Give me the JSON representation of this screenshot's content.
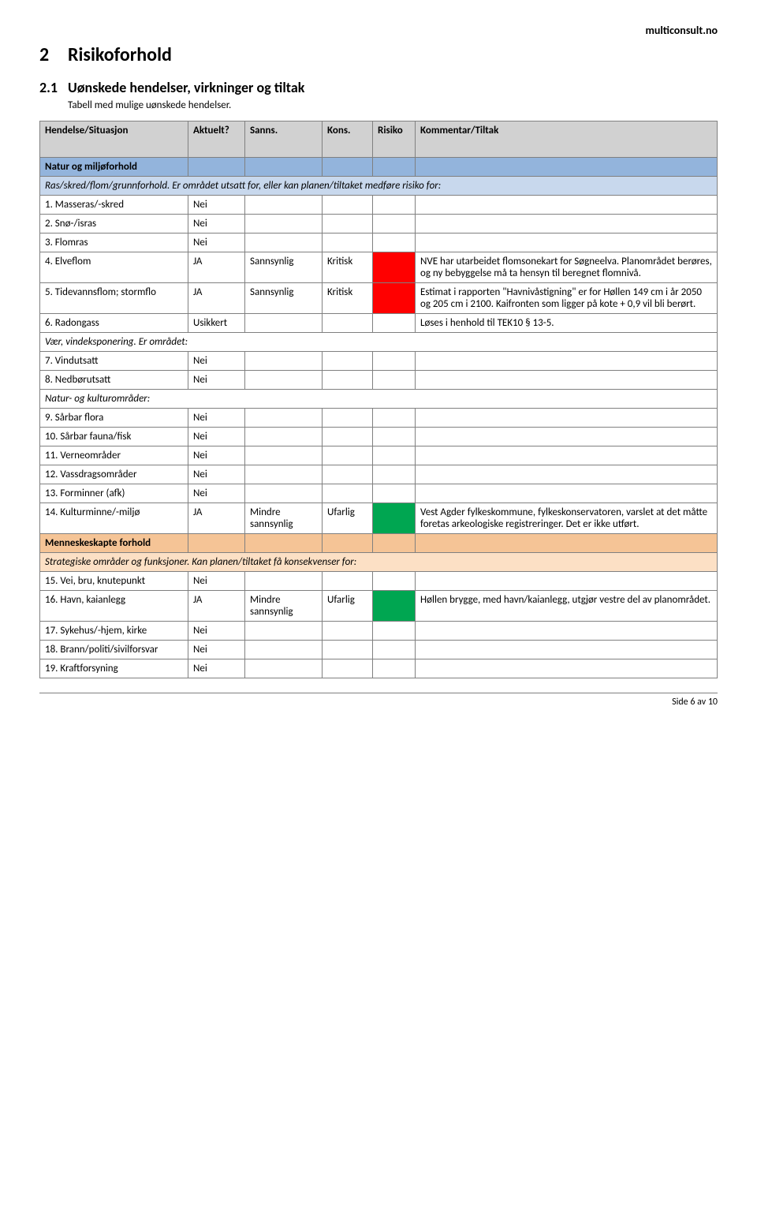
{
  "header_right": "multiconsult.no",
  "h1_num": "2",
  "h1_text": "Risikoforhold",
  "h2_num": "2.1",
  "h2_text": "Uønskede hendelser, virkninger og tiltak",
  "p1": "Tabell med mulige uønskede hendelser.",
  "thead": {
    "c1": "Hendelse/Situasjon",
    "c2": "Aktuelt?",
    "c3": "Sanns.",
    "c4": "Kons.",
    "c5": "Risiko",
    "c6": "Kommentar/Tiltak"
  },
  "sec_natur": "Natur og miljøforhold",
  "sub_ras": "Ras/skred/flom/grunnforhold. Er området utsatt for, eller kan planen/tiltaket medføre risiko for:",
  "r1": {
    "label": "1. Masseras/-skred",
    "aktuelt": "Nei"
  },
  "r2": {
    "label": "2. Snø-/isras",
    "aktuelt": "Nei"
  },
  "r3": {
    "label": "3. Flomras",
    "aktuelt": "Nei"
  },
  "r4": {
    "label": "4. Elveflom",
    "aktuelt": "JA",
    "sanns": "Sannsynlig",
    "kons": "Kritisk",
    "kommentar": "NVE har utarbeidet flomsonekart for Søgneelva. Planområdet berøres, og ny bebyggelse må ta hensyn til beregnet flomnivå."
  },
  "r5": {
    "label": "5. Tidevannsflom; stormflo",
    "aktuelt": "JA",
    "sanns": "Sannsynlig",
    "kons": "Kritisk",
    "kommentar": "Estimat i rapporten \"Havnivåstigning\" er for Høllen 149 cm i år 2050 og 205 cm i 2100. Kaifronten som ligger på kote + 0,9 vil bli berørt."
  },
  "r6": {
    "label": "6. Radongass",
    "aktuelt": "Usikkert",
    "kommentar": "Løses i henhold til TEK10 § 13-5."
  },
  "sub_vaer": "Vær, vindeksponering. Er området:",
  "r7": {
    "label": "7. Vindutsatt",
    "aktuelt": "Nei"
  },
  "r8": {
    "label": "8. Nedbørutsatt",
    "aktuelt": "Nei"
  },
  "sub_natur_kultur": "Natur- og kulturområder:",
  "r9": {
    "label": "9. Sårbar flora",
    "aktuelt": "Nei"
  },
  "r10": {
    "label": "10. Sårbar fauna/fisk",
    "aktuelt": "Nei"
  },
  "r11": {
    "label": "11. Verneområder",
    "aktuelt": "Nei"
  },
  "r12": {
    "label": "12. Vassdragsområder",
    "aktuelt": "Nei"
  },
  "r13": {
    "label": "13. Forminner (afk)",
    "aktuelt": "Nei"
  },
  "r14": {
    "label": "14. Kulturminne/-miljø",
    "aktuelt": "JA",
    "sanns": "Mindre sannsynlig",
    "kons": "Ufarlig",
    "kommentar": "Vest Agder fylkeskommune, fylkeskonservatoren, varslet at det måtte foretas arkeologiske registreringer. Det er ikke utført."
  },
  "sec_mennesk": "Menneskeskapte forhold",
  "sub_strategisk": "Strategiske områder og funksjoner. Kan planen/tiltaket få konsekvenser for:",
  "r15": {
    "label": "15. Vei, bru, knutepunkt",
    "aktuelt": "Nei"
  },
  "r16": {
    "label": "16. Havn, kaianlegg",
    "aktuelt": "JA",
    "sanns": "Mindre sannsynlig",
    "kons": "Ufarlig",
    "kommentar": "Høllen brygge, med havn/kaianlegg, utgjør vestre del av planområdet."
  },
  "r17": {
    "label": "17. Sykehus/-hjem, kirke",
    "aktuelt": "Nei"
  },
  "r18": {
    "label": "18. Brann/politi/sivilforsvar",
    "aktuelt": "Nei"
  },
  "r19": {
    "label": "19. Kraftforsyning",
    "aktuelt": "Nei"
  },
  "footer": "Side 6 av 10",
  "colors": {
    "header_bg": "#d1d1d1",
    "natur_bg": "#93b4dc",
    "natur_sub_bg": "#c8d8ed",
    "mennesk_bg": "#f5c496",
    "mennesk_sub_bg": "#fce0c5",
    "risk_red": "#ff0000",
    "risk_green": "#00a651",
    "border": "#808080"
  }
}
